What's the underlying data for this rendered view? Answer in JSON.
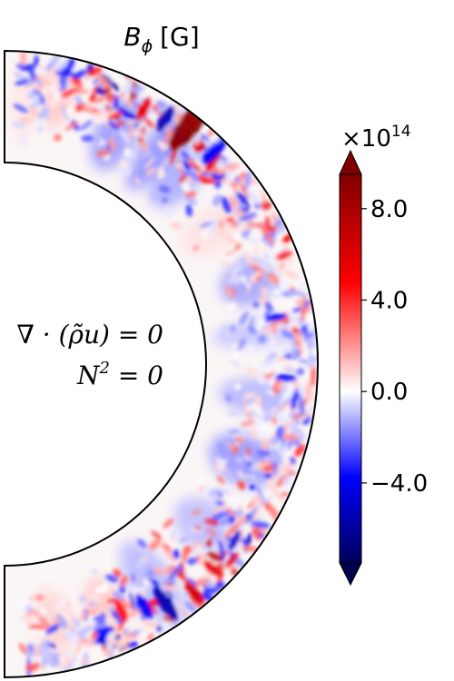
{
  "chart_data": {
    "type": "heatmap",
    "title_symbol": "B",
    "title_subscript": "ϕ",
    "title_unit": "[G]",
    "annotations": {
      "line1": "∇ · (ρ̃u) = 0",
      "line2_base": "N",
      "line2_exp": "2",
      "line2_rest": " = 0"
    },
    "geometry_note": "meridional half-annulus slice",
    "colorbar": {
      "multiplier_base": "×10",
      "multiplier_exp": "14",
      "min": -7.5,
      "max": 9.5,
      "extend": "both",
      "colormap": "seismic",
      "ticks": [
        {
          "value": 8.0,
          "label": "8.0"
        },
        {
          "value": 4.0,
          "label": "4.0"
        },
        {
          "value": 0.0,
          "label": "0.0"
        },
        {
          "value": -4.0,
          "label": "−4.0"
        }
      ]
    },
    "colors": {
      "deep_blue": "#00004d",
      "blue": "#0000ff",
      "white": "#ffffff",
      "red": "#ff0000",
      "deep_red": "#800000"
    }
  }
}
